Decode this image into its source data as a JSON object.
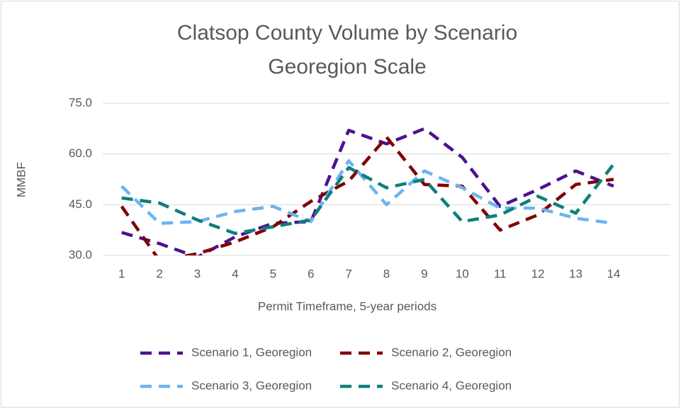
{
  "chart_data": {
    "type": "line",
    "title": [
      "Clatsop County Volume by Scenario",
      "Georegion Scale"
    ],
    "x_label": "Permit Timeframe, 5-year periods",
    "y_label": "MMBF",
    "categories": [
      "1",
      "2",
      "3",
      "4",
      "5",
      "6",
      "7",
      "8",
      "9",
      "10",
      "11",
      "12",
      "13",
      "14",
      null
    ],
    "series": [
      {
        "name": "Scenario 1, Georegion",
        "color": "#4b1290",
        "values": [
          36.8,
          33.5,
          29.5,
          35.5,
          39.5,
          40,
          67,
          63,
          67.5,
          59,
          44.5,
          49.5,
          55,
          50.5,
          null
        ]
      },
      {
        "name": "Scenario 2, Georegion",
        "color": "#800000",
        "values": [
          44.5,
          28.5,
          30.5,
          34,
          38.5,
          46,
          52,
          65,
          51,
          50.5,
          37.5,
          42,
          51,
          52.5,
          null
        ]
      },
      {
        "name": "Scenario 3, Georegion",
        "color": "#6cb4f2",
        "values": [
          50.5,
          39.5,
          40,
          43,
          44.5,
          40,
          58,
          45,
          55,
          50,
          44,
          44,
          41,
          39.5,
          null
        ]
      },
      {
        "name": "Scenario 4, Georegion",
        "color": "#0e7f7a",
        "values": [
          47,
          45.5,
          40.5,
          36.5,
          38.5,
          40.5,
          56,
          50,
          52.5,
          40,
          42,
          47.5,
          42.5,
          57,
          null
        ]
      }
    ],
    "ylim": [
      30,
      75
    ],
    "yticks": [
      {
        "value": 30,
        "label": "30.0"
      },
      {
        "value": 45,
        "label": "45.0"
      },
      {
        "value": 60,
        "label": "60.0"
      },
      {
        "value": 75,
        "label": "75.0"
      }
    ],
    "grid": true,
    "legend": "bottom",
    "line_style": "dashed"
  }
}
